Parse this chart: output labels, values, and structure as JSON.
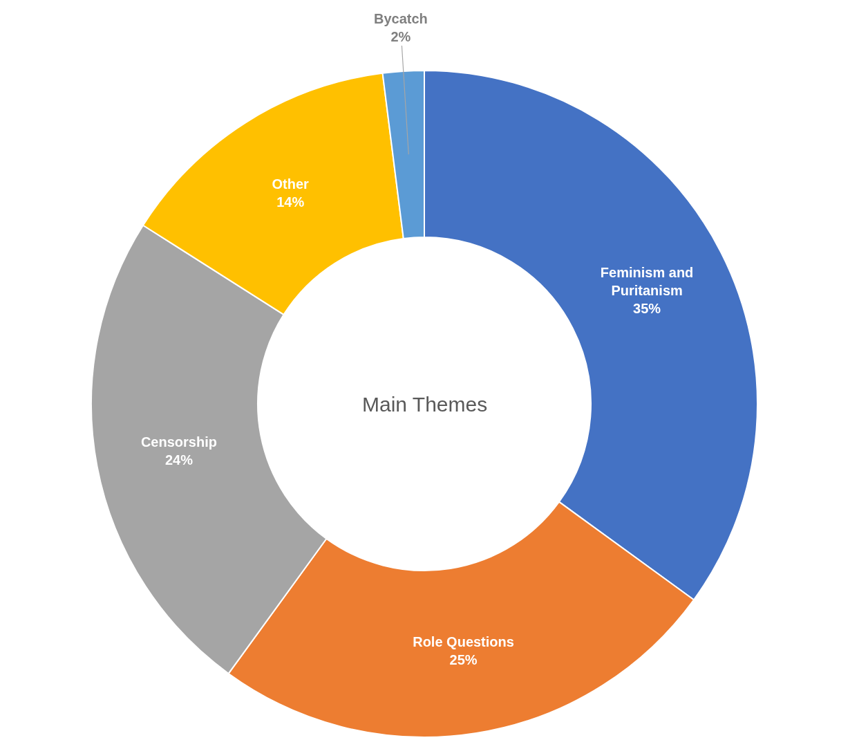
{
  "chart_data": {
    "type": "donut",
    "title": "Main Themes",
    "categories": [
      "Feminism and Puritanism",
      "Role Questions",
      "Censorship",
      "Other",
      "Bycatch"
    ],
    "values": [
      35,
      25,
      24,
      14,
      2
    ],
    "value_labels": [
      "35%",
      "25%",
      "24%",
      "14%",
      "2%"
    ],
    "colors": [
      "#4472c4",
      "#ed7d31",
      "#a5a5a5",
      "#ffc000",
      "#5b9bd5"
    ]
  }
}
